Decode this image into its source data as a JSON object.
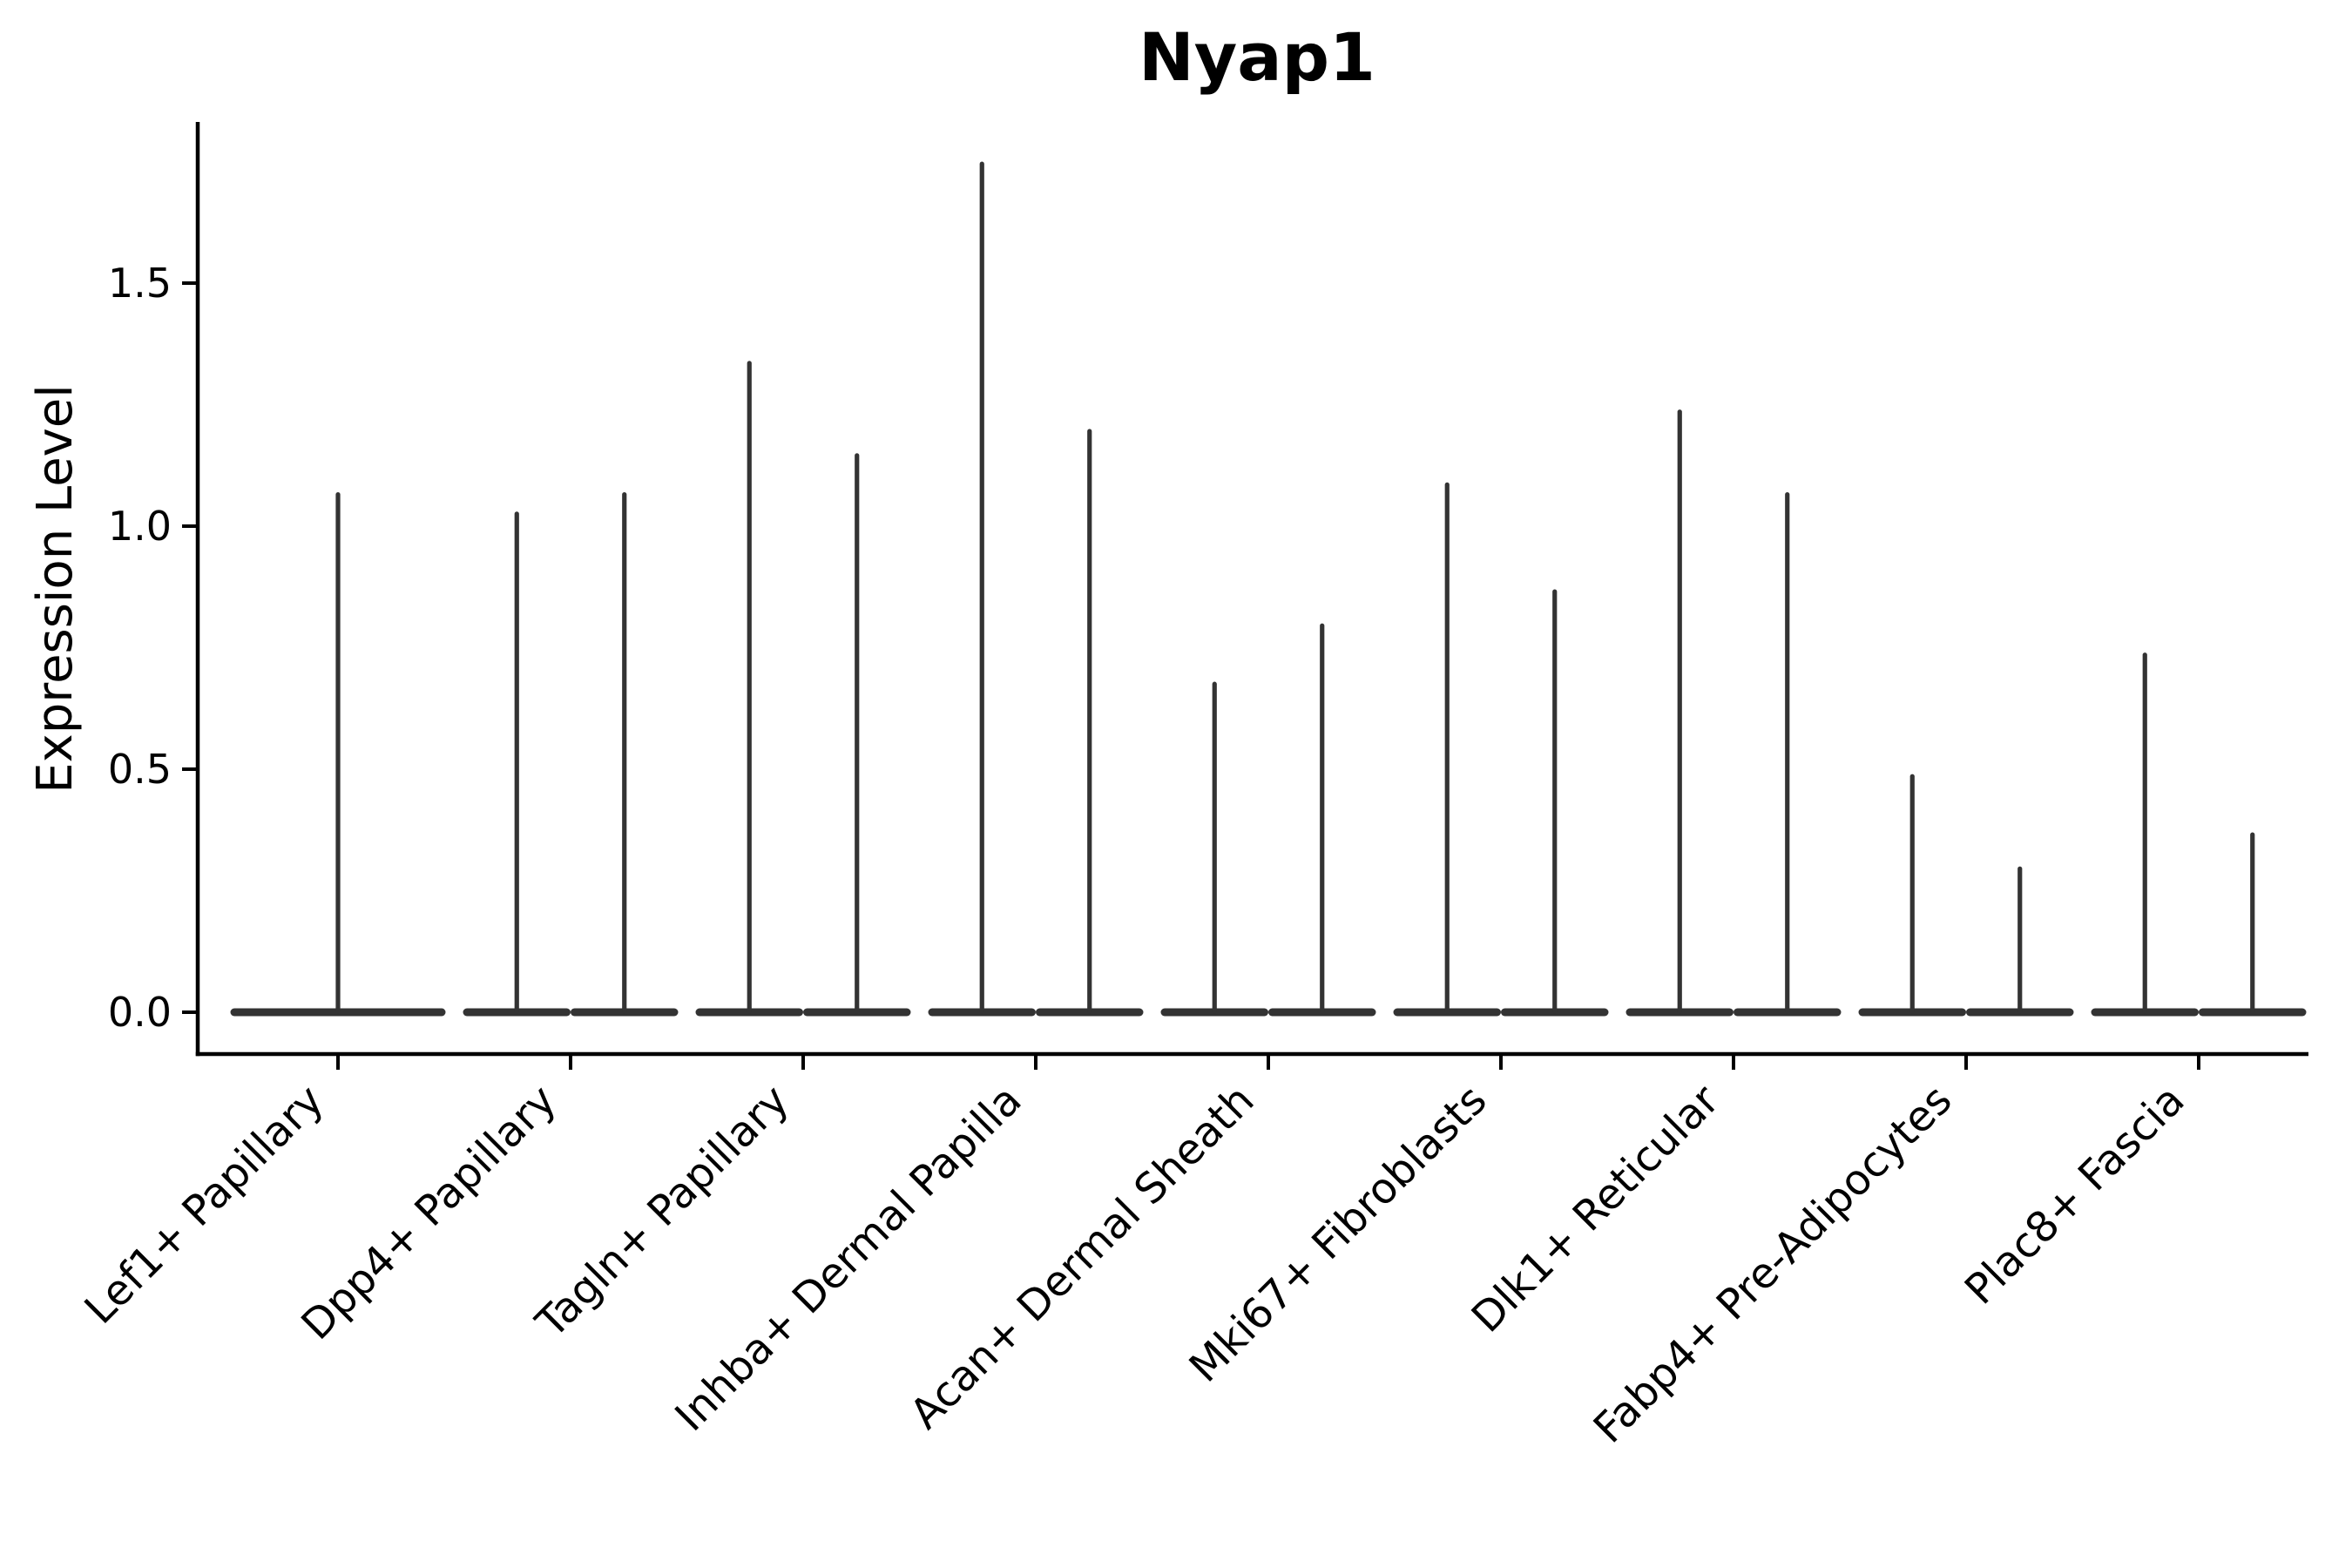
{
  "figure": {
    "title": "Nyap1",
    "y_axis": {
      "label": "Expression Level",
      "tick_labels": [
        "0.0",
        "0.5",
        "1.0",
        "1.5"
      ],
      "tick_values": [
        0.0,
        0.5,
        1.0,
        1.5
      ],
      "range": [
        -0.09,
        1.83
      ]
    }
  },
  "chart_data": {
    "type": "violin",
    "title": "Nyap1",
    "xlabel": "",
    "ylabel": "Expression Level",
    "ylim": [
      -0.09,
      1.83
    ],
    "yticks": [
      0.0,
      0.5,
      1.0,
      1.5
    ],
    "ytick_labels": [
      "0.0",
      "0.5",
      "1.0",
      "1.5"
    ],
    "grid": false,
    "legend": false,
    "violin_color": "#333333",
    "axis_color": "#000000",
    "background": "#ffffff",
    "baseline_value": 0.0,
    "description": "Violin plot of Nyap1 expression; each violin is a wide flat mass at 0 with a thin density spike rising to the listed peak expression level",
    "categories": [
      {
        "label": "Lef1+ Papillary",
        "violins": [
          {
            "position": "center",
            "rel_width": 2,
            "peak": 1.07
          }
        ]
      },
      {
        "label": "Dpp4+ Papillary",
        "violins": [
          {
            "position": "left",
            "rel_width": 1,
            "peak": 1.03
          },
          {
            "position": "right",
            "rel_width": 1,
            "peak": 1.07
          }
        ]
      },
      {
        "label": "Tagln+ Papillary",
        "violins": [
          {
            "position": "left",
            "rel_width": 1,
            "peak": 1.34
          },
          {
            "position": "right",
            "rel_width": 1,
            "peak": 1.15
          }
        ]
      },
      {
        "label": "Inhba+ Dermal Papilla",
        "violins": [
          {
            "position": "left",
            "rel_width": 1,
            "peak": 1.75
          },
          {
            "position": "right",
            "rel_width": 1,
            "peak": 1.2
          }
        ]
      },
      {
        "label": "Acan+ Dermal Sheath",
        "violins": [
          {
            "position": "left",
            "rel_width": 1,
            "peak": 0.68
          },
          {
            "position": "right",
            "rel_width": 1,
            "peak": 0.8
          }
        ]
      },
      {
        "label": "Mki67+ Fibroblasts",
        "violins": [
          {
            "position": "left",
            "rel_width": 1,
            "peak": 1.09
          },
          {
            "position": "right",
            "rel_width": 1,
            "peak": 0.87
          }
        ]
      },
      {
        "label": "Dlk1+ Reticular",
        "violins": [
          {
            "position": "left",
            "rel_width": 1,
            "peak": 1.24
          },
          {
            "position": "right",
            "rel_width": 1,
            "peak": 1.07
          }
        ]
      },
      {
        "label": "Fabp4+ Pre-Adipocytes",
        "violins": [
          {
            "position": "left",
            "rel_width": 1,
            "peak": 0.49
          },
          {
            "position": "right",
            "rel_width": 1,
            "peak": 0.3
          }
        ]
      },
      {
        "label": "Plac8+ Fascia",
        "violins": [
          {
            "position": "left",
            "rel_width": 1,
            "peak": 0.74
          },
          {
            "position": "right",
            "rel_width": 1,
            "peak": 0.37
          }
        ]
      }
    ]
  }
}
